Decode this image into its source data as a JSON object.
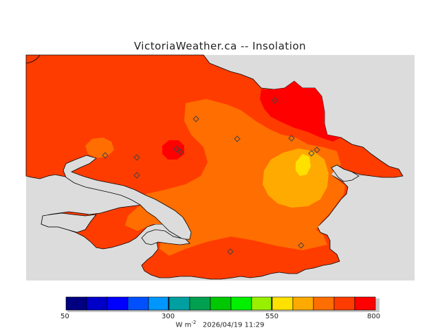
{
  "title": "VictoriaWeather.ca -- Insolation",
  "colorbar": {
    "colors": [
      "#000080",
      "#0000c8",
      "#0000ff",
      "#0050ff",
      "#0096ff",
      "#00a0a0",
      "#00a050",
      "#00c800",
      "#00f000",
      "#96f000",
      "#ffe100",
      "#ffaa00",
      "#ff6e00",
      "#ff3c00",
      "#ff0000"
    ],
    "tick_labels": [
      "50",
      "300",
      "550",
      "800"
    ],
    "units": "W m",
    "units_exp": "-2",
    "timestamp": "2026/04/19 11:29"
  },
  "map_colors": {
    "background": "#dcdcdc",
    "level_750": "#ff3c00",
    "level_700": "#ff6e00",
    "level_650": "#ffaa00",
    "level_600": "#ffe100",
    "level_800": "#ff0000"
  },
  "stations": 11
}
